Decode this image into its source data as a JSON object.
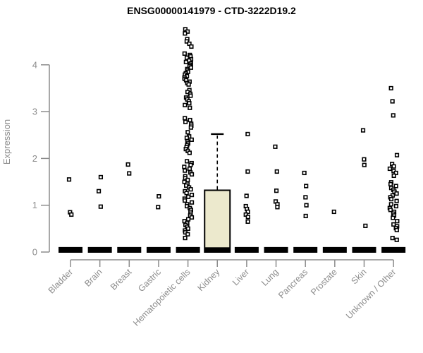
{
  "chart_data": {
    "type": "boxplot",
    "title": "ENSG00000141979 - CTD-3222D19.2",
    "ylabel": "Expression",
    "xlabel": "",
    "yticks": [
      0,
      1,
      2,
      3,
      4
    ],
    "ylim": [
      0,
      4.9
    ],
    "grid": false,
    "legend": "none",
    "categories": [
      "Bladder",
      "Brain",
      "Breast",
      "Gastric",
      "Hematopoietic cells",
      "Kidney",
      "Liver",
      "Lung",
      "Pancreas",
      "Prostate",
      "Skin",
      "Unknown / Other"
    ],
    "colors": {
      "box_fill": "#ece9cd",
      "box_stroke": "#000000",
      "point": "#000000",
      "point_center": "#ffffff",
      "axis": "#8c8c8c",
      "text": "#8c8c8c",
      "title": "#000000",
      "background": "#ffffff"
    },
    "boxes": [
      {
        "q1": 0,
        "median": 0.05,
        "q3": 0.1,
        "whisker_high": 0.1
      },
      {
        "q1": 0,
        "median": 0.05,
        "q3": 0.1,
        "whisker_high": 0.1
      },
      {
        "q1": 0,
        "median": 0.05,
        "q3": 0.1,
        "whisker_high": 0.1
      },
      {
        "q1": 0,
        "median": 0.05,
        "q3": 0.1,
        "whisker_high": 0.1
      },
      {
        "q1": 0,
        "median": 0.05,
        "q3": 0.1,
        "whisker_high": 0.1
      },
      {
        "q1": 0,
        "median": 0.05,
        "q3": 1.32,
        "whisker_high": 2.52
      },
      {
        "q1": 0,
        "median": 0.05,
        "q3": 0.1,
        "whisker_high": 0.1
      },
      {
        "q1": 0,
        "median": 0.05,
        "q3": 0.1,
        "whisker_high": 0.1
      },
      {
        "q1": 0,
        "median": 0.05,
        "q3": 0.1,
        "whisker_high": 0.1
      },
      {
        "q1": 0,
        "median": 0.05,
        "q3": 0.1,
        "whisker_high": 0.1
      },
      {
        "q1": 0,
        "median": 0.05,
        "q3": 0.1,
        "whisker_high": 0.1
      },
      {
        "q1": 0,
        "median": 0.05,
        "q3": 0.1,
        "whisker_high": 0.1
      }
    ],
    "outliers": [
      [
        1.55,
        0.85,
        0.8
      ],
      [
        1.6,
        1.3,
        0.97
      ],
      [
        1.87,
        1.68
      ],
      [
        1.19,
        0.96
      ],
      [
        4.76,
        4.71,
        4.67,
        4.55,
        4.5,
        4.45,
        4.39,
        4.24,
        4.21,
        4.18,
        4.15,
        4.12,
        4.09,
        4.06,
        4.03,
        4.0,
        3.97,
        3.94,
        3.91,
        3.88,
        3.85,
        3.82,
        3.79,
        3.76,
        3.73,
        3.7,
        3.67,
        3.64,
        3.61,
        3.58,
        3.46,
        3.42,
        3.38,
        3.34,
        3.3,
        3.26,
        3.22,
        3.18,
        3.14,
        3.08,
        2.86,
        2.82,
        2.78,
        2.74,
        2.7,
        2.66,
        2.56,
        2.47,
        2.44,
        2.4,
        2.36,
        2.32,
        2.28,
        2.24,
        2.2,
        2.16,
        2.12,
        1.94,
        1.9,
        1.86,
        1.82,
        1.78,
        1.74,
        1.7,
        1.66,
        1.62,
        1.58,
        1.54,
        1.5,
        1.46,
        1.42,
        1.38,
        1.34,
        1.3,
        1.26,
        1.22,
        1.18,
        1.14,
        1.1,
        1.06,
        1.02,
        0.98,
        0.94,
        0.9,
        0.86,
        0.82,
        0.78,
        0.74,
        0.7,
        0.66,
        0.62,
        0.58,
        0.54,
        0.5,
        0.46,
        0.42,
        0.38,
        0.3
      ],
      [],
      [
        2.52,
        1.72,
        1.2,
        0.98,
        0.92,
        0.86,
        0.8,
        0.75,
        0.65
      ],
      [
        2.25,
        1.72,
        1.31,
        1.08,
        1.02,
        0.96
      ],
      [
        1.69,
        1.41,
        1.17,
        1.0,
        0.77
      ],
      [
        0.86
      ],
      [
        2.6,
        1.98,
        1.86,
        0.56
      ],
      [
        3.5,
        3.22,
        2.92,
        2.07,
        1.88,
        1.83,
        1.78,
        1.73,
        1.69,
        1.63,
        1.49,
        1.45,
        1.41,
        1.37,
        1.33,
        1.29,
        1.25,
        1.21,
        1.17,
        1.13,
        1.09,
        1.02,
        0.98,
        0.94,
        0.9,
        0.86,
        0.82,
        0.78,
        0.73,
        0.66,
        0.59,
        0.55,
        0.51,
        0.47,
        0.3,
        0.26
      ]
    ]
  }
}
